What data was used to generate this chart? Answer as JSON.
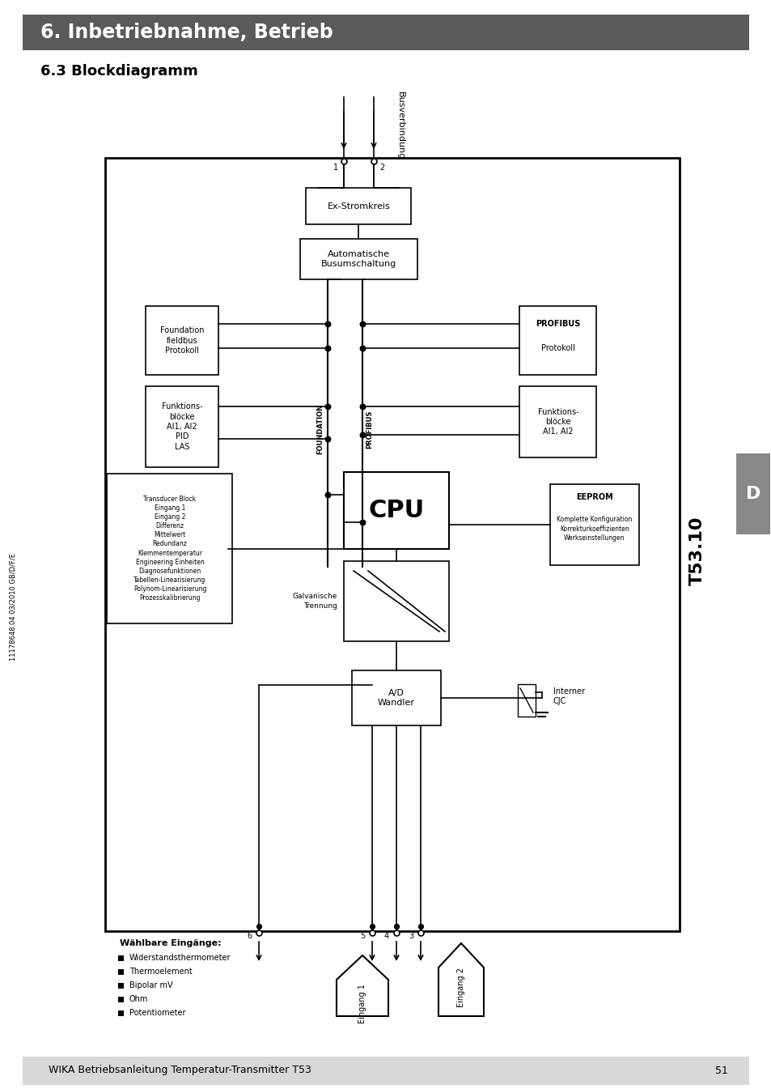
{
  "title_bar": "6. Inbetriebnahme, Betrieb",
  "title_bar_color": "#5a5a5a",
  "title_bar_text_color": "#ffffff",
  "subtitle": "6.3 Blockdiagramm",
  "footer_text": "WIKA Betriebsanleitung Temperatur-Transmitter T53",
  "footer_page": "51",
  "footer_bg": "#d8d8d8",
  "side_label": "D",
  "side_label_bg": "#888888",
  "side_label_text": "#ffffff",
  "model_label": "T53.10",
  "doc_number": "11178648.04 03/2010 GB/D/F/E",
  "bg_color": "#ffffff",
  "bus_label": "Busverbindung",
  "galvanische_label": "Galvanische\nTrennung",
  "foundation_vert_label": "FOUNDATION",
  "profibus_vert_label": "PROFIBUS",
  "inputs_label": "Wählbare Eingänge:",
  "input_items": [
    "Widerstandsthermometer",
    "Thermoelement",
    "Bipolar mV",
    "Ohm",
    "Potentiometer"
  ],
  "eingang1_label": "Eingang 1",
  "eingang2_label": "Eingang 2"
}
